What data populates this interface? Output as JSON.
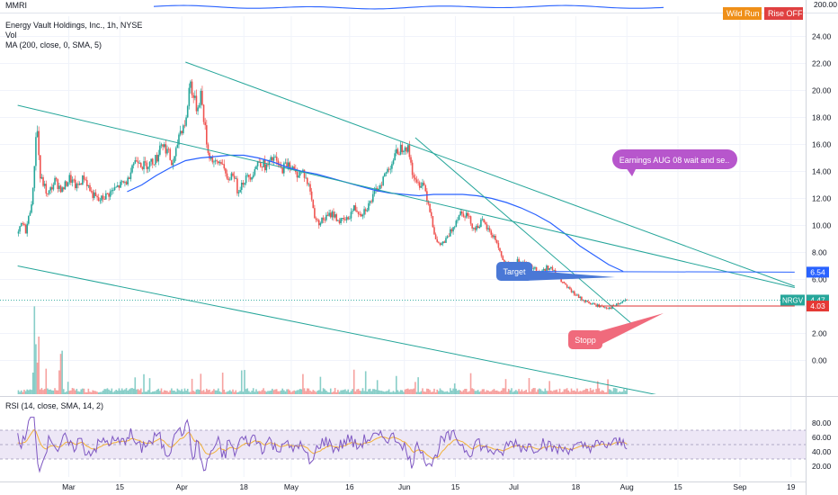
{
  "header": {
    "top_indicator": "MMRI",
    "symbol_line": "Energy Vault Holdings, Inc., 1h, NYSE",
    "vol_label": "Vol",
    "ma_label": "MA (200, close, 0, SMA, 5)",
    "rsi_label": "RSI (14, close, SMA, 14, 2)",
    "btn1": "Wild Run",
    "btn2": "Rise OFF",
    "btn1_color": "#ef8f18",
    "btn2_color": "#e04040"
  },
  "chart_data": [
    {
      "type": "candlestick",
      "title": "Energy Vault Holdings, Inc., 1h, NYSE",
      "ticker": "NRGV",
      "ylim": [
        -2.5,
        25.5
      ],
      "y_ticks": [
        0,
        2,
        4,
        6,
        8,
        10,
        12,
        14,
        16,
        18,
        20,
        22,
        24
      ],
      "y_tick_labels": [
        "0.00",
        "2.00",
        "4.00",
        "6.00",
        "8.00",
        "10.00",
        "12.00",
        "14.00",
        "16.00",
        "18.00",
        "20.00",
        "22.00",
        "24.00"
      ],
      "x_ticks": [
        {
          "t": 0,
          "label": "Mar"
        },
        {
          "t": 14,
          "label": "15"
        },
        {
          "t": 31,
          "label": "Apr"
        },
        {
          "t": 48,
          "label": "18"
        },
        {
          "t": 61,
          "label": "May"
        },
        {
          "t": 77,
          "label": "16"
        },
        {
          "t": 92,
          "label": "Jun"
        },
        {
          "t": 106,
          "label": "15"
        },
        {
          "t": 122,
          "label": "Jul"
        },
        {
          "t": 139,
          "label": "18"
        },
        {
          "t": 153,
          "label": "Aug"
        },
        {
          "t": 167,
          "label": "15"
        },
        {
          "t": 184,
          "label": "Sep"
        },
        {
          "t": 198,
          "label": "19"
        }
      ],
      "x_range": [
        -8,
        202
      ],
      "price_path": [
        [
          -14,
          9.4
        ],
        [
          -13,
          10.2
        ],
        [
          -12,
          9.6
        ],
        [
          -11,
          10.8
        ],
        [
          -10,
          12.5
        ],
        [
          -9,
          17.8
        ],
        [
          -8,
          13.5
        ],
        [
          -7,
          13.0
        ],
        [
          -6,
          12.2
        ],
        [
          -4,
          13.3
        ],
        [
          -2,
          12.6
        ],
        [
          0,
          13.5
        ],
        [
          2,
          12.8
        ],
        [
          4,
          13.6
        ],
        [
          6,
          12.4
        ],
        [
          8,
          11.8
        ],
        [
          10,
          12.2
        ],
        [
          12,
          12.6
        ],
        [
          14,
          13.0
        ],
        [
          16,
          13.3
        ],
        [
          17,
          14.5
        ],
        [
          19,
          15.0
        ],
        [
          20,
          14.4
        ],
        [
          22,
          14.6
        ],
        [
          24,
          15.0
        ],
        [
          25,
          16.2
        ],
        [
          27,
          15.5
        ],
        [
          28,
          14.5
        ],
        [
          29,
          15.0
        ],
        [
          30,
          16.8
        ],
        [
          32,
          17.8
        ],
        [
          33,
          20.8
        ],
        [
          34,
          19.5
        ],
        [
          35,
          18.6
        ],
        [
          36,
          19.8
        ],
        [
          37,
          17.5
        ],
        [
          38,
          15.4
        ],
        [
          40,
          14.5
        ],
        [
          42,
          14.8
        ],
        [
          43,
          13.2
        ],
        [
          45,
          14.0
        ],
        [
          46,
          12.6
        ],
        [
          48,
          13.4
        ],
        [
          50,
          13.8
        ],
        [
          52,
          14.8
        ],
        [
          54,
          14.3
        ],
        [
          56,
          15.0
        ],
        [
          58,
          14.1
        ],
        [
          60,
          14.7
        ],
        [
          62,
          13.8
        ],
        [
          64,
          14.0
        ],
        [
          66,
          12.6
        ],
        [
          67,
          10.9
        ],
        [
          68,
          10.2
        ],
        [
          70,
          10.5
        ],
        [
          72,
          10.9
        ],
        [
          74,
          10.3
        ],
        [
          76,
          10.4
        ],
        [
          78,
          11.3
        ],
        [
          80,
          10.9
        ],
        [
          82,
          11.5
        ],
        [
          84,
          12.5
        ],
        [
          86,
          13.5
        ],
        [
          88,
          14.5
        ],
        [
          90,
          15.5
        ],
        [
          92,
          16.0
        ],
        [
          93,
          15.5
        ],
        [
          94,
          14.0
        ],
        [
          95,
          13.0
        ],
        [
          97,
          13.2
        ],
        [
          99,
          11.0
        ],
        [
          100,
          9.5
        ],
        [
          101,
          8.5
        ],
        [
          103,
          8.8
        ],
        [
          105,
          9.8
        ],
        [
          107,
          11.0
        ],
        [
          109,
          10.8
        ],
        [
          111,
          9.7
        ],
        [
          113,
          10.3
        ],
        [
          115,
          9.6
        ],
        [
          117,
          8.9
        ],
        [
          119,
          7.2
        ],
        [
          121,
          7.0
        ],
        [
          123,
          7.4
        ],
        [
          125,
          7.1
        ],
        [
          127,
          6.9
        ],
        [
          129,
          6.5
        ],
        [
          131,
          6.9
        ],
        [
          132,
          6.8
        ],
        [
          134,
          6.2
        ],
        [
          136,
          5.5
        ],
        [
          138,
          5.0
        ],
        [
          140,
          4.6
        ],
        [
          142,
          4.3
        ],
        [
          144,
          4.1
        ],
        [
          146,
          4.0
        ],
        [
          148,
          3.9
        ],
        [
          150,
          4.1
        ],
        [
          152,
          4.4
        ],
        [
          153,
          4.5
        ]
      ],
      "ma_path": [
        [
          16,
          12.5
        ],
        [
          20,
          13.0
        ],
        [
          24,
          13.7
        ],
        [
          28,
          14.3
        ],
        [
          32,
          14.8
        ],
        [
          36,
          15.0
        ],
        [
          40,
          15.1
        ],
        [
          44,
          15.2
        ],
        [
          48,
          15.2
        ],
        [
          52,
          15.0
        ],
        [
          56,
          14.7
        ],
        [
          60,
          14.3
        ],
        [
          64,
          14.0
        ],
        [
          68,
          13.8
        ],
        [
          72,
          13.5
        ],
        [
          76,
          13.2
        ],
        [
          80,
          12.9
        ],
        [
          84,
          12.6
        ],
        [
          88,
          12.4
        ],
        [
          92,
          12.3
        ],
        [
          96,
          12.2
        ],
        [
          100,
          12.3
        ],
        [
          104,
          12.3
        ],
        [
          108,
          12.3
        ],
        [
          112,
          12.2
        ],
        [
          116,
          12.0
        ],
        [
          120,
          11.7
        ],
        [
          124,
          11.3
        ],
        [
          128,
          10.8
        ],
        [
          132,
          10.2
        ],
        [
          136,
          9.4
        ],
        [
          140,
          8.5
        ],
        [
          144,
          7.8
        ],
        [
          148,
          7.1
        ],
        [
          152,
          6.6
        ]
      ],
      "current_price": "4.47",
      "current_price_value": 4.47,
      "level_labels": [
        {
          "name": "target",
          "text": "6.54",
          "value": 6.54
        },
        {
          "name": "stop",
          "text": "4.03",
          "value": 4.03
        }
      ],
      "trendlines": [
        {
          "name": "lower-channel-upper",
          "from": [
            -14,
            18.9
          ],
          "to": [
            199,
            5.4
          ]
        },
        {
          "name": "lower-channel-lower",
          "from": [
            -14,
            7.0
          ],
          "to": [
            199,
            -4.6
          ]
        },
        {
          "name": "upper-channel-top",
          "from": [
            32,
            22.1
          ],
          "to": [
            199,
            5.5
          ]
        },
        {
          "name": "steep-down",
          "from": [
            95,
            16.5
          ],
          "to": [
            154,
            2.8
          ]
        },
        {
          "name": "target-line",
          "from": [
            119,
            6.6
          ],
          "to": [
            199,
            6.54
          ]
        },
        {
          "name": "stop-line",
          "from": [
            145,
            4.03
          ],
          "to": [
            199,
            4.03
          ]
        }
      ],
      "annotations": [
        {
          "name": "target",
          "text": "Target",
          "color": "#4a78d6",
          "anchor": [
            119,
            6.5
          ]
        },
        {
          "name": "stop",
          "text": "Stopp",
          "color": "#f06a7c",
          "anchor": [
            154,
            4.03
          ]
        },
        {
          "name": "earnings",
          "text": "Earnings AUG 08  wait and se..",
          "color": "#b756cc"
        }
      ],
      "volume_note": "volume histogram at the bottom of the price pane, peak near early March"
    },
    {
      "type": "line",
      "title": "RSI (14, close, SMA, 14, 2)",
      "ylim": [
        5,
        95
      ],
      "y_ticks": [
        20,
        40,
        60,
        80
      ],
      "y_tick_labels": [
        "20.00",
        "40.00",
        "60.00",
        "80.00"
      ],
      "band": [
        30,
        70
      ],
      "series": [
        {
          "name": "RSI",
          "color": "#7e57c2"
        },
        {
          "name": "SMA",
          "color": "#f2b138"
        }
      ]
    }
  ],
  "colors": {
    "up": "#26a69a",
    "down": "#ef5350",
    "trend": "#26a69a",
    "ma": "#2962ff",
    "rsi": "#7e57c2",
    "rsi_band": "#ede7f6",
    "target": "#4a78d6",
    "stop": "#f06a7c",
    "earnings": "#b756cc",
    "ticker_tag": "#26a69a",
    "price_tag": "#26a69a",
    "stop_tag": "#e53935",
    "target_tag": "#2962ff",
    "top_axis": "#2962ff"
  },
  "top_pane": {
    "axis_label": "200.00"
  }
}
